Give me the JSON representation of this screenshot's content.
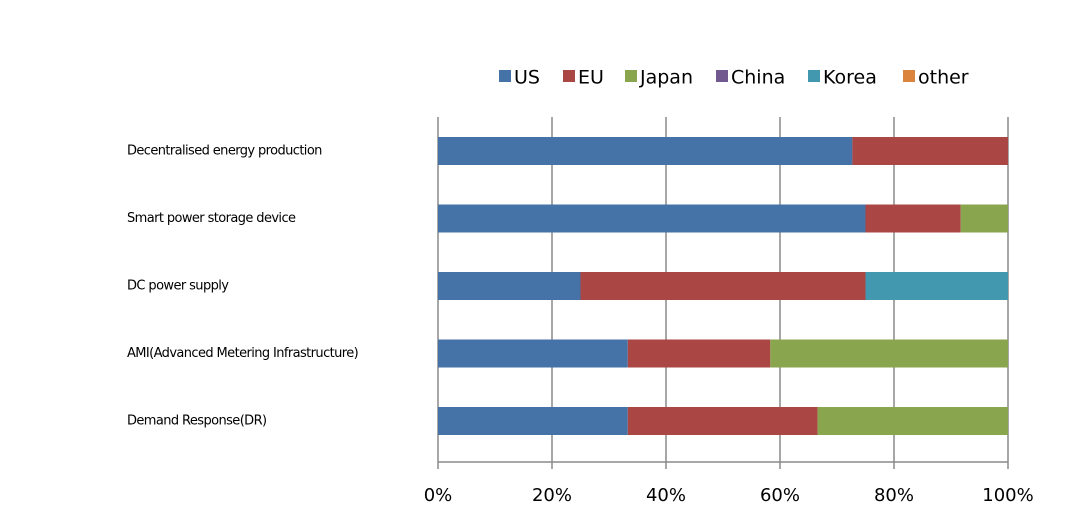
{
  "chart_data": {
    "type": "stacked-barh",
    "categories": [
      "Decentralised energy production",
      "Smart power storage device",
      "DC power supply",
      "AMI(Advanced Metering Infrastructure)",
      "Demand Response(DR)"
    ],
    "series": [
      {
        "name": "US",
        "color": "#4572a7",
        "values": [
          72.7,
          75,
          25,
          33.3,
          33.3
        ]
      },
      {
        "name": "EU",
        "color": "#aa4643",
        "values": [
          27.3,
          16.7,
          50,
          25,
          33.3
        ]
      },
      {
        "name": "Japan",
        "color": "#89a54e",
        "values": [
          0,
          8.3,
          0,
          41.7,
          33.4
        ]
      },
      {
        "name": "China",
        "color": "#71588f",
        "values": [
          0,
          0,
          0,
          0,
          0
        ]
      },
      {
        "name": "Korea",
        "color": "#4198af",
        "values": [
          0,
          0,
          25,
          0,
          0
        ]
      },
      {
        "name": "other",
        "color": "#db843d",
        "values": [
          0,
          0,
          0,
          0,
          0
        ]
      }
    ],
    "xlim": [
      0,
      100
    ],
    "xticks": [
      {
        "value": 0,
        "label": "0%"
      },
      {
        "value": 20,
        "label": "20%"
      },
      {
        "value": 40,
        "label": "40%"
      },
      {
        "value": 60,
        "label": "60%"
      },
      {
        "value": 80,
        "label": "80%"
      },
      {
        "value": 100,
        "label": "100%"
      }
    ],
    "grid": true,
    "legend": "top"
  }
}
